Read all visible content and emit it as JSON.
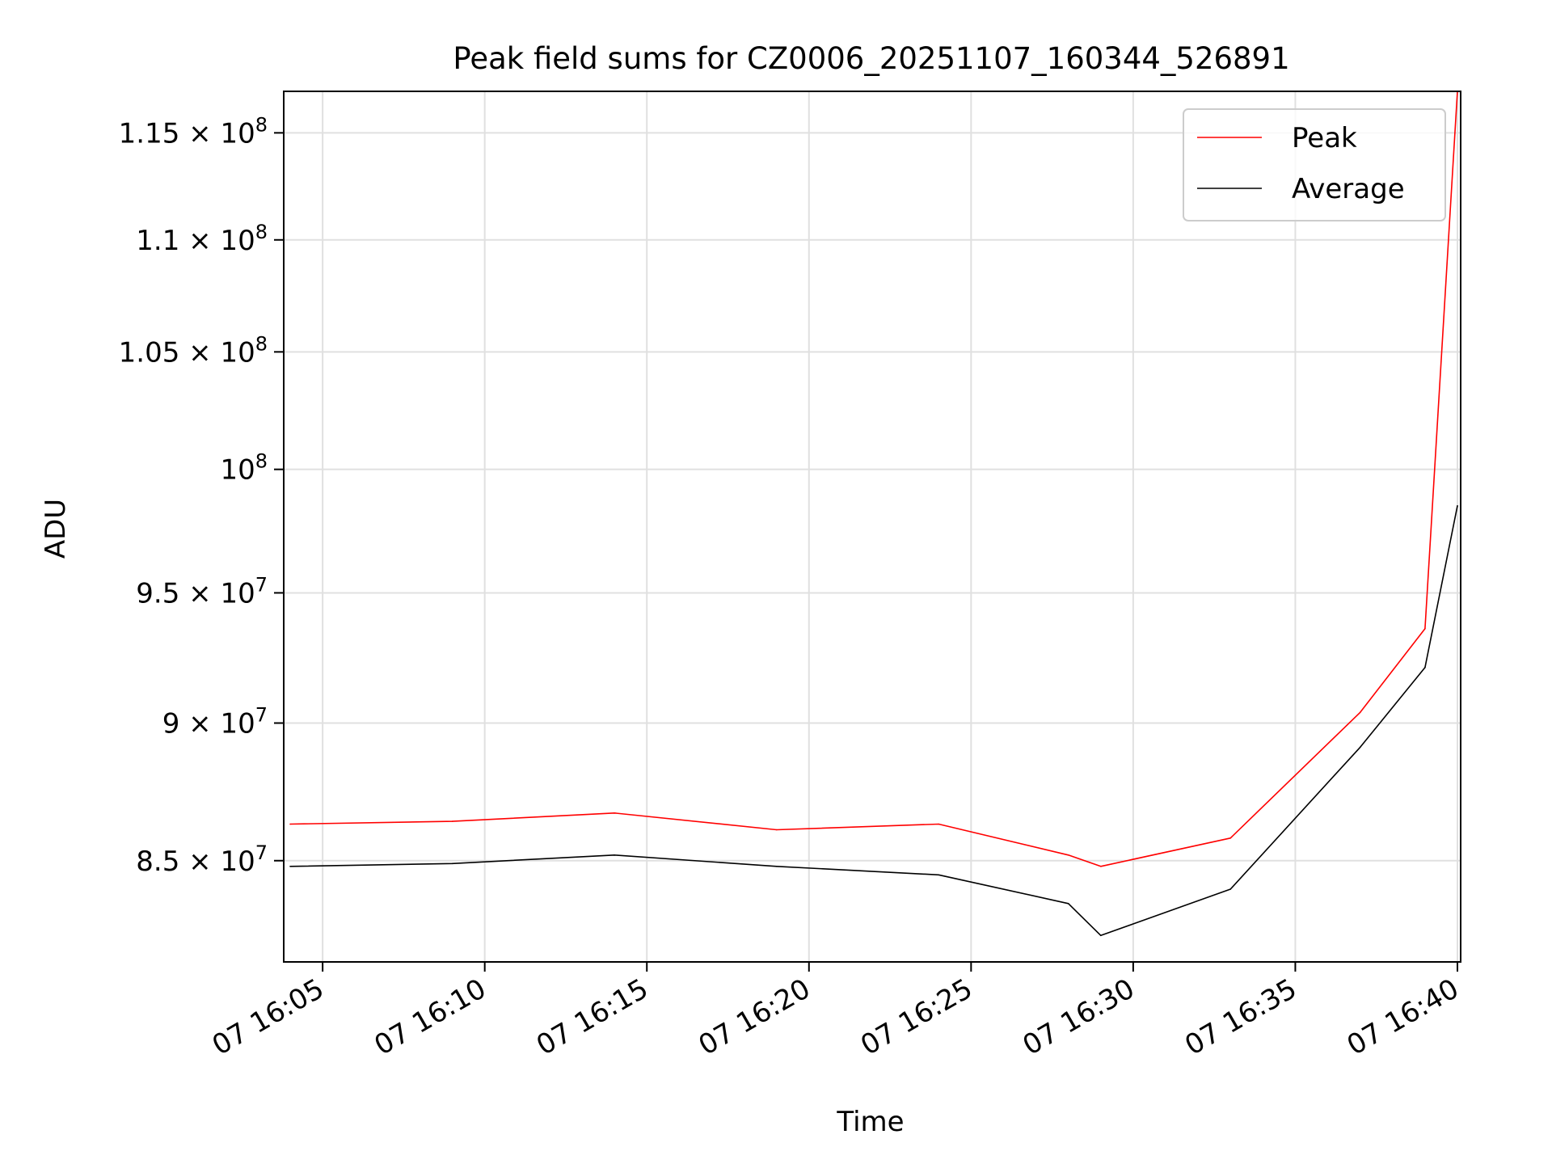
{
  "chart_data": {
    "type": "line",
    "title": "Peak field sums for CZ0006_20251107_160344_526891",
    "xlabel": "Time",
    "ylabel": "ADU",
    "x_unit": "time (HH:MM, day 07)",
    "xlim": [
      "16:03:48",
      "16:40:06"
    ],
    "ylim": [
      81500000,
      117000000
    ],
    "y_scale": "log",
    "grid": true,
    "legend_position": "upper right",
    "x_ticks": [
      {
        "time": "16:05",
        "label": "07 16:05"
      },
      {
        "time": "16:10",
        "label": "07 16:10"
      },
      {
        "time": "16:15",
        "label": "07 16:15"
      },
      {
        "time": "16:20",
        "label": "07 16:20"
      },
      {
        "time": "16:25",
        "label": "07 16:25"
      },
      {
        "time": "16:30",
        "label": "07 16:30"
      },
      {
        "time": "16:35",
        "label": "07 16:35"
      },
      {
        "time": "16:40",
        "label": "07 16:40"
      }
    ],
    "y_ticks": [
      {
        "value": 85000000,
        "mantissa": "8.5",
        "exponent": "7"
      },
      {
        "value": 90000000,
        "mantissa": "9",
        "exponent": "7"
      },
      {
        "value": 95000000,
        "mantissa": "9.5",
        "exponent": "7"
      },
      {
        "value": 100000000,
        "mantissa": "",
        "exponent": "8"
      },
      {
        "value": 105000000,
        "mantissa": "1.05",
        "exponent": "8"
      },
      {
        "value": 110000000,
        "mantissa": "1.1",
        "exponent": "8"
      },
      {
        "value": 115000000,
        "mantissa": "1.15",
        "exponent": "8"
      }
    ],
    "times": [
      "16:04",
      "16:09",
      "16:14",
      "16:19",
      "16:24",
      "16:28",
      "16:29",
      "16:33",
      "16:37",
      "16:39",
      "16:40"
    ],
    "series": [
      {
        "name": "Peak",
        "color": "#ff0000",
        "values": [
          86300000,
          86400000,
          86700000,
          86100000,
          86300000,
          85200000,
          84800000,
          85800000,
          90400000,
          93600000,
          117000000
        ]
      },
      {
        "name": "Average",
        "color": "#000000",
        "values": [
          84800000,
          84900000,
          85200000,
          84800000,
          84500000,
          83500000,
          82400000,
          84000000,
          89100000,
          92100000,
          98500000
        ]
      }
    ]
  }
}
